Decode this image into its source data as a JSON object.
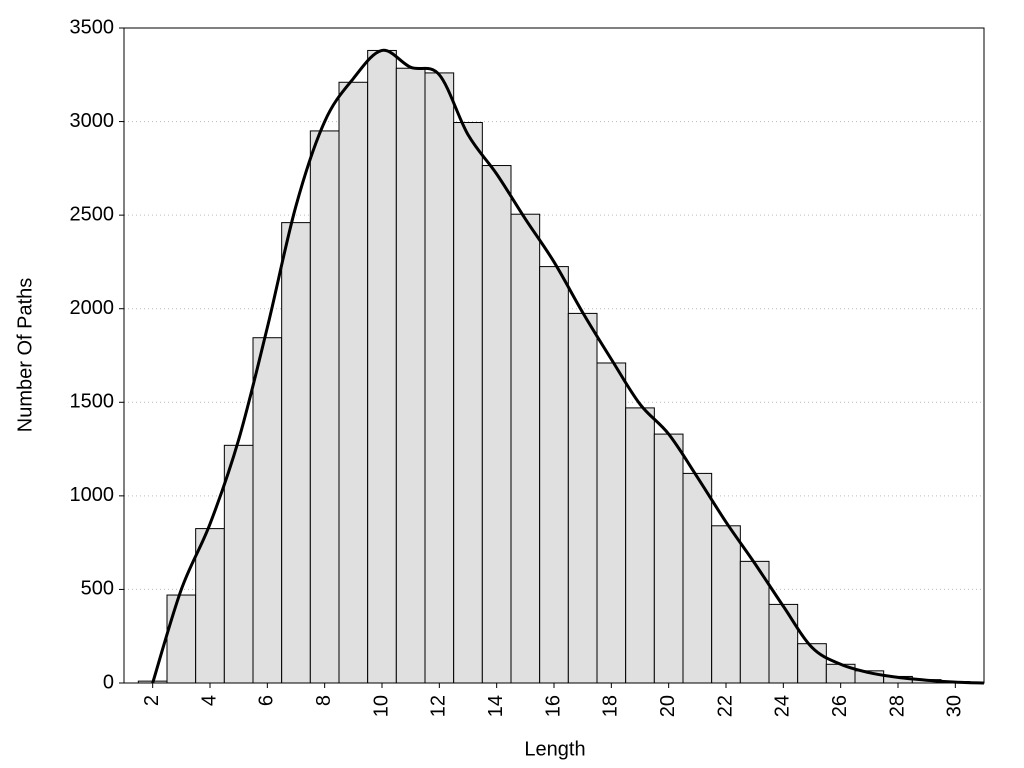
{
  "chart_data": {
    "type": "histogram",
    "xlabel": "Length",
    "ylabel": "Number Of Paths",
    "bins": [
      1.5,
      2.5,
      3.5,
      4.5,
      5.5,
      6.5,
      7.5,
      8.5,
      9.5,
      10.5,
      11.5,
      12.5,
      13.5,
      14.5,
      15.5,
      16.5,
      17.5,
      18.5,
      19.5,
      20.5,
      21.5,
      22.5,
      23.5,
      24.5,
      25.5,
      26.5,
      27.5,
      28.5,
      29.5,
      30.5
    ],
    "counts": [
      10,
      470,
      825,
      1270,
      1845,
      2460,
      2950,
      3210,
      3380,
      3285,
      3260,
      2995,
      2765,
      2505,
      2225,
      1975,
      1710,
      1470,
      1330,
      1120,
      840,
      650,
      420,
      210,
      100,
      65,
      35,
      18,
      8
    ],
    "color": "#e0e0e0",
    "line": {
      "color": "#000000",
      "x": [
        2,
        3,
        4,
        5,
        6,
        7,
        8,
        9,
        10,
        11,
        12,
        13,
        14,
        15,
        16,
        17,
        18,
        19,
        20,
        21,
        22,
        23,
        24,
        25,
        26,
        27,
        28,
        29,
        30,
        31
      ],
      "values": [
        0,
        500,
        850,
        1300,
        1900,
        2550,
        3000,
        3230,
        3380,
        3290,
        3250,
        2930,
        2720,
        2480,
        2250,
        1980,
        1730,
        1490,
        1330,
        1100,
        860,
        640,
        410,
        190,
        100,
        55,
        30,
        15,
        5,
        0
      ]
    },
    "xlim": [
      1,
      31
    ],
    "ylim": [
      0,
      3500
    ],
    "xticks": [
      2,
      4,
      6,
      8,
      10,
      12,
      14,
      16,
      18,
      20,
      22,
      24,
      26,
      28,
      30
    ],
    "yticks": [
      0,
      500,
      1000,
      1500,
      2000,
      2500,
      3000,
      3500
    ],
    "grid": true
  }
}
